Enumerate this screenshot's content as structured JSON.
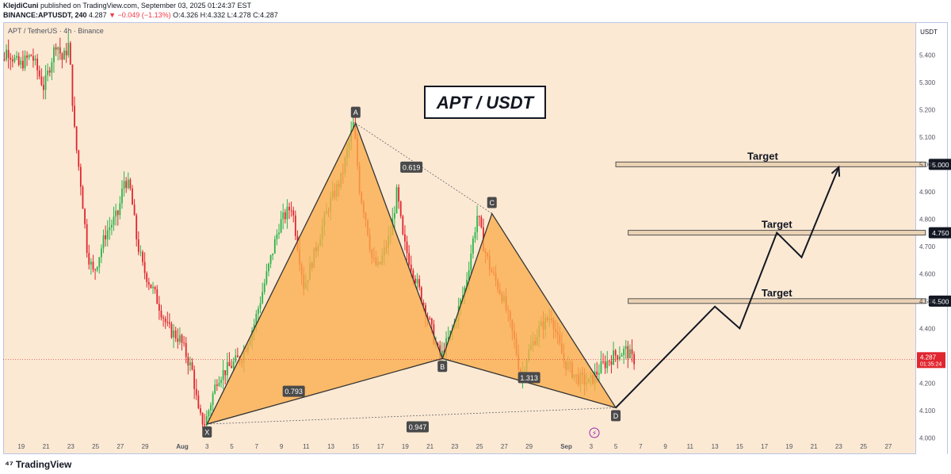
{
  "header": {
    "author": "KlejdiCuni",
    "published": "published on TradingView.com, September 03, 2025 01:24:37 EST",
    "symbol": "BINANCE:APTUSDT, 240",
    "price": "4.287",
    "change": "−0.049 (−1.13%)",
    "ohlc": "O:4.326 H:4.332 L:4.278 C:4.287"
  },
  "symbol_label": "APT / TetherUS · 4h · Binance",
  "footer": {
    "logo_text": "TradingView"
  },
  "colors": {
    "background": "#fbe9d4",
    "up": "#2db34a",
    "down": "#e0262e",
    "pattern_fill": "#fbad4a",
    "pattern_line": "#333333",
    "price_tag": "#e0262e"
  },
  "chart_data": {
    "type": "candlestick",
    "title": "APT / USDT",
    "currency_label": "USDT",
    "ylim": [
      3.94,
      5.52
    ],
    "y_ticks": [
      4.0,
      4.1,
      4.2,
      4.3,
      4.4,
      4.5,
      4.6,
      4.7,
      4.8,
      4.9,
      5.0,
      5.1,
      5.2,
      5.3,
      5.4
    ],
    "y_tick_labels": [
      "4.000",
      "4.100",
      "4.200",
      "4.300",
      "4.400",
      "4.500",
      "4.600",
      "4.700",
      "4.800",
      "4.900",
      "5.000",
      "5.100",
      "5.200",
      "5.300",
      "5.400"
    ],
    "x_ticks": [
      {
        "label": "19",
        "day": -13
      },
      {
        "label": "21",
        "day": -11
      },
      {
        "label": "23",
        "day": -9
      },
      {
        "label": "25",
        "day": -7
      },
      {
        "label": "27",
        "day": -5
      },
      {
        "label": "29",
        "day": -3
      },
      {
        "label": "Aug",
        "day": 0
      },
      {
        "label": "3",
        "day": 2
      },
      {
        "label": "5",
        "day": 4
      },
      {
        "label": "7",
        "day": 6
      },
      {
        "label": "9",
        "day": 8
      },
      {
        "label": "11",
        "day": 10
      },
      {
        "label": "13",
        "day": 12
      },
      {
        "label": "15",
        "day": 14
      },
      {
        "label": "17",
        "day": 16
      },
      {
        "label": "19",
        "day": 18
      },
      {
        "label": "21",
        "day": 20
      },
      {
        "label": "23",
        "day": 22
      },
      {
        "label": "25",
        "day": 24
      },
      {
        "label": "27",
        "day": 26
      },
      {
        "label": "29",
        "day": 28
      },
      {
        "label": "Sep",
        "day": 31
      },
      {
        "label": "3",
        "day": 33
      },
      {
        "label": "5",
        "day": 35
      },
      {
        "label": "7",
        "day": 37
      },
      {
        "label": "9",
        "day": 39
      },
      {
        "label": "11",
        "day": 41
      },
      {
        "label": "13",
        "day": 43
      },
      {
        "label": "15",
        "day": 45
      },
      {
        "label": "17",
        "day": 47
      },
      {
        "label": "19",
        "day": 49
      },
      {
        "label": "21",
        "day": 51
      },
      {
        "label": "23",
        "day": 53
      },
      {
        "label": "25",
        "day": 55
      },
      {
        "label": "27",
        "day": 57
      }
    ],
    "price_path": [
      [
        -15,
        5.3
      ],
      [
        -14,
        5.42
      ],
      [
        -13,
        5.36
      ],
      [
        -12,
        5.4
      ],
      [
        -11,
        5.28
      ],
      [
        -10,
        5.45
      ],
      [
        -9.5,
        5.38
      ],
      [
        -9,
        5.44
      ],
      [
        -8.5,
        5.1
      ],
      [
        -8,
        4.92
      ],
      [
        -7.5,
        4.68
      ],
      [
        -7,
        4.6
      ],
      [
        -6,
        4.75
      ],
      [
        -5,
        4.82
      ],
      [
        -4.5,
        4.95
      ],
      [
        -4,
        4.9
      ],
      [
        -3.5,
        4.72
      ],
      [
        -3,
        4.62
      ],
      [
        -2,
        4.52
      ],
      [
        -1,
        4.4
      ],
      [
        0,
        4.36
      ],
      [
        1,
        4.24
      ],
      [
        1.5,
        4.08
      ],
      [
        2,
        4.05
      ],
      [
        3,
        4.22
      ],
      [
        4,
        4.26
      ],
      [
        5,
        4.3
      ],
      [
        6,
        4.42
      ],
      [
        7,
        4.6
      ],
      [
        8,
        4.78
      ],
      [
        9,
        4.85
      ],
      [
        9.5,
        4.7
      ],
      [
        10,
        4.55
      ],
      [
        11,
        4.7
      ],
      [
        12,
        4.85
      ],
      [
        13,
        4.95
      ],
      [
        13.5,
        5.05
      ],
      [
        14,
        5.15
      ],
      [
        14.5,
        4.9
      ],
      [
        15,
        4.8
      ],
      [
        15.5,
        4.65
      ],
      [
        16,
        4.62
      ],
      [
        17,
        4.75
      ],
      [
        17.5,
        4.9
      ],
      [
        18,
        4.72
      ],
      [
        19,
        4.58
      ],
      [
        20,
        4.44
      ],
      [
        20.5,
        4.36
      ],
      [
        21,
        4.29
      ],
      [
        22,
        4.4
      ],
      [
        23,
        4.55
      ],
      [
        24,
        4.82
      ],
      [
        24.5,
        4.7
      ],
      [
        25,
        4.62
      ],
      [
        26,
        4.52
      ],
      [
        27,
        4.35
      ],
      [
        27.5,
        4.22
      ],
      [
        28,
        4.3
      ],
      [
        29,
        4.4
      ],
      [
        30,
        4.45
      ],
      [
        30.5,
        4.35
      ],
      [
        31,
        4.28
      ],
      [
        32,
        4.22
      ],
      [
        33,
        4.2
      ],
      [
        34,
        4.26
      ],
      [
        35,
        4.3
      ],
      [
        36,
        4.32
      ],
      [
        36.5,
        4.287
      ]
    ],
    "harmonic_pattern": {
      "points": [
        {
          "label": "X",
          "day": 2,
          "price": 4.05
        },
        {
          "label": "A",
          "day": 14,
          "price": 5.15
        },
        {
          "label": "B",
          "day": 21,
          "price": 4.29
        },
        {
          "label": "C",
          "day": 25,
          "price": 4.82
        },
        {
          "label": "D",
          "day": 35,
          "price": 4.11
        }
      ],
      "ratios": [
        {
          "label": "0.619",
          "day": 18.5,
          "price": 4.99
        },
        {
          "label": "0.793",
          "day": 9,
          "price": 4.17
        },
        {
          "label": "1.313",
          "day": 28,
          "price": 4.22
        },
        {
          "label": "0.947",
          "day": 19,
          "price": 4.04
        }
      ]
    },
    "projection": [
      [
        35,
        4.11
      ],
      [
        43,
        4.48
      ],
      [
        45,
        4.4
      ],
      [
        48,
        4.75
      ],
      [
        50,
        4.66
      ],
      [
        53,
        4.99
      ]
    ],
    "targets": [
      {
        "label": "Target",
        "price": 5.0,
        "tag": "5.000",
        "x0": 35,
        "x1": 60
      },
      {
        "label": "Target",
        "price": 4.75,
        "tag": "4.750",
        "x0": 36,
        "x1": 60
      },
      {
        "label": "Target",
        "price": 4.5,
        "tag": "4.500",
        "x0": 36,
        "x1": 60
      }
    ],
    "last_price": {
      "value": "4.287",
      "countdown": "01:35:24"
    }
  }
}
